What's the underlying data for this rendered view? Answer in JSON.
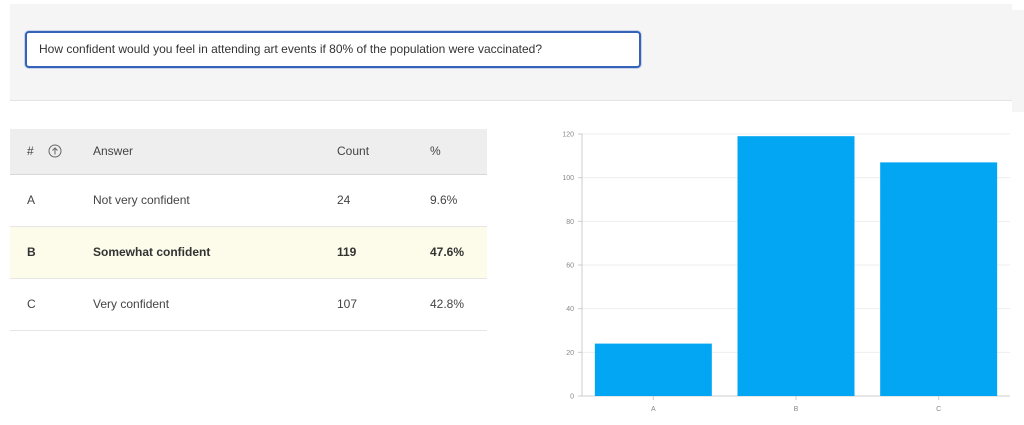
{
  "question": {
    "text": "How confident would you feel in attending art events if 80% of the population were vaccinated?"
  },
  "table": {
    "headers": {
      "number": "#",
      "answer": "Answer",
      "count": "Count",
      "percent": "%"
    },
    "sort_icon": "sort-up-icon",
    "rows": [
      {
        "id": "A",
        "answer": "Not very confident",
        "count": "24",
        "percent": "9.6%",
        "highlighted": false
      },
      {
        "id": "B",
        "answer": "Somewhat confident",
        "count": "119",
        "percent": "47.6%",
        "highlighted": true
      },
      {
        "id": "C",
        "answer": "Very confident",
        "count": "107",
        "percent": "42.8%",
        "highlighted": false
      }
    ]
  },
  "colors": {
    "bar": "#03a6f3",
    "highlight_row": "#fdfbea",
    "input_border": "#3563b8"
  },
  "chart_data": {
    "type": "bar",
    "categories": [
      "A",
      "B",
      "C"
    ],
    "values": [
      24,
      119,
      107
    ],
    "title": "",
    "xlabel": "",
    "ylabel": "",
    "ylim": [
      0,
      120
    ],
    "yticks": [
      0,
      20,
      40,
      60,
      80,
      100,
      120
    ],
    "grid": true
  }
}
